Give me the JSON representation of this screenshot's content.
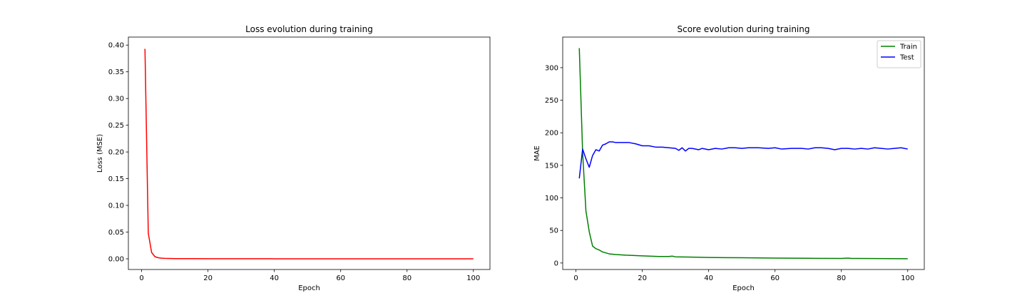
{
  "chart_data": [
    {
      "type": "line",
      "title": "Loss evolution during training",
      "xlabel": "Epoch",
      "ylabel": "Loss (MSE)",
      "xlim": [
        -4,
        105
      ],
      "ylim": [
        -0.02,
        0.415
      ],
      "xticks": [
        0,
        20,
        40,
        60,
        80,
        100
      ],
      "yticks": [
        0.0,
        0.05,
        0.1,
        0.15,
        0.2,
        0.25,
        0.3,
        0.35,
        0.4
      ],
      "ytick_decimals": 2,
      "grid": false,
      "legend": null,
      "series": [
        {
          "color": "#ff0000",
          "x": [
            1,
            2,
            3,
            4,
            5,
            6,
            7,
            8,
            10,
            15,
            20,
            30,
            40,
            50,
            60,
            70,
            80,
            90,
            100
          ],
          "y": [
            0.393,
            0.048,
            0.012,
            0.004,
            0.002,
            0.0012,
            0.0008,
            0.0006,
            0.0004,
            0.0003,
            0.0002,
            0.0002,
            0.0001,
            0.0001,
            0.0001,
            0.0001,
            0.0001,
            0.0001,
            0.0001
          ]
        }
      ]
    },
    {
      "type": "line",
      "title": "Score evolution during training",
      "xlabel": "Epoch",
      "ylabel": "MAE",
      "xlim": [
        -4,
        105
      ],
      "ylim": [
        -10,
        347
      ],
      "xticks": [
        0,
        20,
        40,
        60,
        80,
        100
      ],
      "yticks": [
        0,
        50,
        100,
        150,
        200,
        250,
        300
      ],
      "ytick_decimals": 0,
      "grid": false,
      "legend": "top-right",
      "series": [
        {
          "name": "Train",
          "color": "#008000",
          "x": [
            1,
            2,
            3,
            4,
            5,
            6,
            7,
            8,
            10,
            12,
            15,
            20,
            25,
            28,
            29,
            30,
            35,
            40,
            50,
            60,
            70,
            80,
            82,
            83,
            85,
            90,
            95,
            100
          ],
          "y": [
            330,
            170,
            80,
            48,
            26,
            22,
            20,
            17,
            14,
            13,
            12,
            11,
            10,
            10,
            10.5,
            9.5,
            9,
            8.5,
            8,
            7.5,
            7.2,
            7,
            7.5,
            7,
            7,
            6.8,
            6.7,
            6.5
          ]
        },
        {
          "name": "Test",
          "color": "#0000ff",
          "x": [
            1,
            2,
            3,
            4,
            5,
            6,
            7,
            8,
            9,
            10,
            11,
            12,
            14,
            16,
            18,
            20,
            22,
            24,
            26,
            28,
            30,
            31,
            32,
            33,
            34,
            35,
            37,
            38,
            40,
            42,
            44,
            46,
            48,
            50,
            52,
            55,
            58,
            60,
            62,
            65,
            68,
            70,
            72,
            74,
            76,
            78,
            80,
            82,
            84,
            86,
            88,
            90,
            92,
            94,
            96,
            98,
            100
          ],
          "y": [
            130,
            175,
            160,
            147,
            165,
            174,
            172,
            181,
            183,
            186,
            186,
            185,
            185,
            185,
            183,
            180,
            180,
            178,
            178,
            177,
            176,
            173,
            177,
            172,
            176,
            176,
            174,
            176,
            174,
            176,
            175,
            177,
            177,
            176,
            177,
            177,
            176,
            177,
            175,
            176,
            176,
            175,
            177,
            177,
            176,
            174,
            176,
            176,
            175,
            176,
            175,
            177,
            176,
            175,
            176,
            177,
            175
          ]
        }
      ]
    }
  ]
}
